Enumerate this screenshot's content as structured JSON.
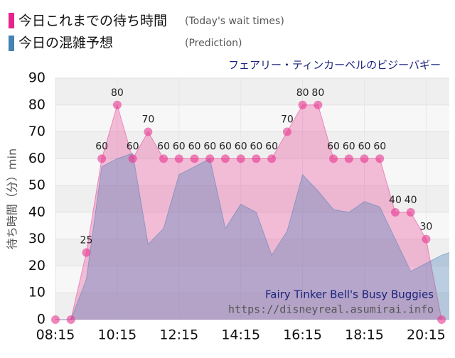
{
  "chart_data": {
    "type": "area",
    "title": "フェアリー・ティンカーベルのビジーバギー",
    "ylabel": "待ち時間（分）min",
    "x": [
      "08:15",
      "08:45",
      "09:15",
      "09:45",
      "10:15",
      "10:45",
      "11:15",
      "11:45",
      "12:15",
      "12:45",
      "13:15",
      "13:45",
      "14:15",
      "14:45",
      "15:15",
      "15:45",
      "16:15",
      "16:45",
      "17:15",
      "17:45",
      "18:15",
      "18:45",
      "19:15",
      "19:45",
      "20:15",
      "20:45",
      "21:00"
    ],
    "xlim": [
      "08:15",
      "21:00"
    ],
    "xticks": [
      "08:15",
      "10:15",
      "12:15",
      "14:15",
      "16:15",
      "18:15",
      "20:15"
    ],
    "ylim": [
      0,
      90
    ],
    "yticks": [
      0,
      10,
      20,
      30,
      40,
      50,
      60,
      70,
      80,
      90
    ],
    "grid": true,
    "series": [
      {
        "name": "今日これまでの待ち時間",
        "note": "(Today's wait times)",
        "color": "#e8368f",
        "values": [
          0,
          0,
          25,
          60,
          80,
          60,
          70,
          60,
          60,
          60,
          60,
          60,
          60,
          60,
          60,
          70,
          80,
          80,
          60,
          60,
          60,
          60,
          40,
          40,
          30,
          0,
          null
        ]
      },
      {
        "name": "今日の混雑予想",
        "note": "(Prediction)",
        "color": "#4a7fb5",
        "values": [
          0,
          0,
          15,
          57,
          60,
          62,
          28,
          34,
          54,
          57,
          60,
          34,
          43,
          40,
          24,
          33,
          54,
          48,
          41,
          40,
          44,
          42,
          30,
          18,
          21,
          24,
          25
        ]
      }
    ],
    "watermark": [
      "Fairy Tinker Bell's Busy Buggies",
      "https://disneyreal.asumirai.info"
    ]
  }
}
